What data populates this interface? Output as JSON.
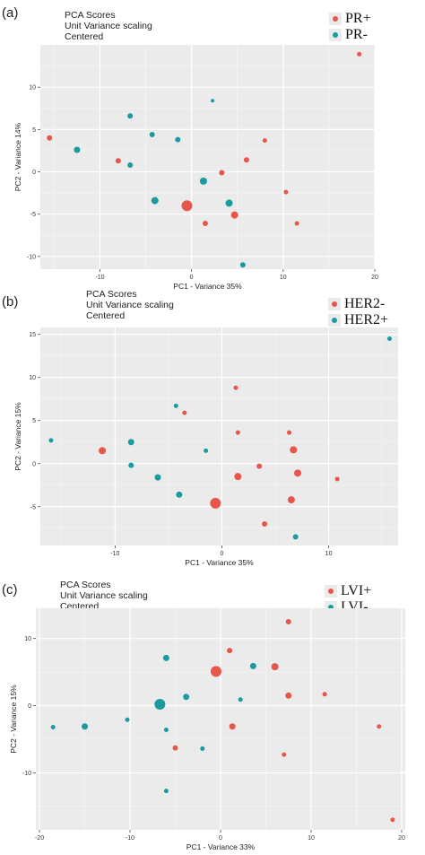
{
  "colors": {
    "red": "#e8554a",
    "teal": "#1a9ba0",
    "panel_bg": "#ebebeb",
    "grid": "#ffffff"
  },
  "panels": [
    {
      "letter": "(a)",
      "subtitle": [
        "PCA Scores",
        "Unit Variance scaling",
        "Centered"
      ],
      "legend": [
        {
          "label": "PR+",
          "color": "#e8554a"
        },
        {
          "label": "PR-",
          "color": "#1a9ba0"
        }
      ],
      "xlabel": "PC1 - Variance 35%",
      "ylabel": "PC2 - Variance 14%"
    },
    {
      "letter": "(b)",
      "subtitle": [
        "PCA Scores",
        "Unit Variance scaling",
        "Centered"
      ],
      "legend": [
        {
          "label": "HER2-",
          "color": "#e8554a"
        },
        {
          "label": "HER2+",
          "color": "#1a9ba0"
        }
      ],
      "xlabel": "PC1 - Variance 35%",
      "ylabel": "PC2 - Variance 15%"
    },
    {
      "letter": "(c)",
      "subtitle": [
        "PCA Scores",
        "Unit Variance scaling",
        "Centered"
      ],
      "legend": [
        {
          "label": "LVI+",
          "color": "#e8554a"
        },
        {
          "label": "LVI-",
          "color": "#1a9ba0"
        }
      ],
      "xlabel": "PC1 - Variance 33%",
      "ylabel": "PC2 - Variance 15%"
    }
  ],
  "chart_data": [
    {
      "type": "scatter",
      "xlabel": "PC1 - Variance 35%",
      "ylabel": "PC2 - Variance 14%",
      "xlim": [
        -16.5,
        20
      ],
      "ylim": [
        -11.5,
        15
      ],
      "xticks": [
        -10,
        0,
        10,
        20
      ],
      "yticks": [
        -10,
        -5,
        0,
        5,
        10
      ],
      "grid": true,
      "legend_position": "top-right",
      "series": [
        {
          "name": "PR+",
          "color": "#e8554a",
          "points": [
            {
              "x": -15.5,
              "y": 4.0,
              "s": 3
            },
            {
              "x": -8.0,
              "y": 1.3,
              "s": 3
            },
            {
              "x": -0.5,
              "y": -4.0,
              "s": 6
            },
            {
              "x": 1.5,
              "y": -6.1,
              "s": 3
            },
            {
              "x": 3.3,
              "y": -0.1,
              "s": 3
            },
            {
              "x": 4.7,
              "y": -5.1,
              "s": 4
            },
            {
              "x": 6.0,
              "y": 1.4,
              "s": 3
            },
            {
              "x": 8.0,
              "y": 3.7,
              "s": 2.5
            },
            {
              "x": 10.3,
              "y": -2.4,
              "s": 2.5
            },
            {
              "x": 11.5,
              "y": -6.1,
              "s": 2.5
            },
            {
              "x": 18.3,
              "y": 13.9,
              "s": 2.5
            }
          ]
        },
        {
          "name": "PR-",
          "color": "#1a9ba0",
          "points": [
            {
              "x": -12.5,
              "y": 2.6,
              "s": 3.5
            },
            {
              "x": -6.7,
              "y": 6.6,
              "s": 3
            },
            {
              "x": -6.7,
              "y": 0.8,
              "s": 3
            },
            {
              "x": -4.3,
              "y": 4.4,
              "s": 3
            },
            {
              "x": -4.0,
              "y": -3.4,
              "s": 4
            },
            {
              "x": -1.5,
              "y": 3.8,
              "s": 3
            },
            {
              "x": 1.3,
              "y": -1.1,
              "s": 4
            },
            {
              "x": 2.3,
              "y": 8.4,
              "s": 2
            },
            {
              "x": 4.1,
              "y": -3.7,
              "s": 4
            },
            {
              "x": 5.6,
              "y": -11.0,
              "s": 3
            }
          ]
        }
      ]
    },
    {
      "type": "scatter",
      "xlabel": "PC1 - Variance 35%",
      "ylabel": "PC2 - Variance 15%",
      "xlim": [
        -17,
        16.5
      ],
      "ylim": [
        -9.5,
        15.8
      ],
      "xticks": [
        -10,
        0,
        10
      ],
      "yticks": [
        -5,
        0,
        5,
        10,
        15
      ],
      "grid": true,
      "legend_position": "top-right",
      "series": [
        {
          "name": "HER2-",
          "color": "#e8554a",
          "points": [
            {
              "x": -11.2,
              "y": 1.5,
              "s": 4
            },
            {
              "x": -3.5,
              "y": 5.9,
              "s": 2.5
            },
            {
              "x": -0.6,
              "y": -4.6,
              "s": 6
            },
            {
              "x": 1.3,
              "y": 8.8,
              "s": 2.5
            },
            {
              "x": 1.5,
              "y": 3.6,
              "s": 2.5
            },
            {
              "x": 1.5,
              "y": -1.5,
              "s": 4
            },
            {
              "x": 3.5,
              "y": -0.3,
              "s": 3
            },
            {
              "x": 4.0,
              "y": -7.0,
              "s": 3
            },
            {
              "x": 6.3,
              "y": 3.6,
              "s": 2.5
            },
            {
              "x": 6.7,
              "y": 1.6,
              "s": 4
            },
            {
              "x": 6.5,
              "y": -4.2,
              "s": 4
            },
            {
              "x": 7.1,
              "y": -1.1,
              "s": 4
            },
            {
              "x": 10.8,
              "y": -1.8,
              "s": 2.5
            }
          ]
        },
        {
          "name": "HER2+",
          "color": "#1a9ba0",
          "points": [
            {
              "x": -16.0,
              "y": 2.7,
              "s": 2.5
            },
            {
              "x": -8.5,
              "y": 2.5,
              "s": 3.5
            },
            {
              "x": -8.5,
              "y": -0.2,
              "s": 3
            },
            {
              "x": -6.0,
              "y": -1.6,
              "s": 3.5
            },
            {
              "x": -4.3,
              "y": 6.7,
              "s": 2.5
            },
            {
              "x": -4.0,
              "y": -3.6,
              "s": 3.5
            },
            {
              "x": -1.5,
              "y": 1.5,
              "s": 2.5
            },
            {
              "x": 6.9,
              "y": -8.5,
              "s": 3
            },
            {
              "x": 15.7,
              "y": 14.5,
              "s": 2.5
            }
          ]
        }
      ]
    },
    {
      "type": "scatter",
      "xlabel": "PC1 - Variance 33%",
      "ylabel": "PC2 - Variance 15%",
      "xlim": [
        -20.4,
        20.4
      ],
      "ylim": [
        -18.5,
        14.5
      ],
      "xticks": [
        -20,
        -10,
        0,
        10,
        20
      ],
      "yticks": [
        -10,
        0,
        10
      ],
      "grid": true,
      "legend_position": "top-right",
      "series": [
        {
          "name": "LVI+",
          "color": "#e8554a",
          "points": [
            {
              "x": -5.0,
              "y": -6.3,
              "s": 3
            },
            {
              "x": -0.5,
              "y": 5.1,
              "s": 6
            },
            {
              "x": 1.0,
              "y": 8.2,
              "s": 3
            },
            {
              "x": 1.3,
              "y": -3.1,
              "s": 3.5
            },
            {
              "x": 6.0,
              "y": 5.8,
              "s": 4
            },
            {
              "x": 7.0,
              "y": -7.3,
              "s": 2.5
            },
            {
              "x": 7.5,
              "y": 12.5,
              "s": 3
            },
            {
              "x": 7.5,
              "y": 1.5,
              "s": 3.5
            },
            {
              "x": 11.5,
              "y": 1.7,
              "s": 2.5
            },
            {
              "x": 17.5,
              "y": -3.1,
              "s": 2.5
            },
            {
              "x": 19.0,
              "y": -17.0,
              "s": 2.5
            }
          ]
        },
        {
          "name": "LVI-",
          "color": "#1a9ba0",
          "points": [
            {
              "x": -18.5,
              "y": -3.2,
              "s": 2.5
            },
            {
              "x": -15.0,
              "y": -3.1,
              "s": 3.5
            },
            {
              "x": -10.3,
              "y": -2.1,
              "s": 2.5
            },
            {
              "x": -6.7,
              "y": 0.2,
              "s": 6
            },
            {
              "x": -6.0,
              "y": 7.1,
              "s": 3.5
            },
            {
              "x": -6.0,
              "y": -3.6,
              "s": 2.5
            },
            {
              "x": -6.0,
              "y": -12.7,
              "s": 2.5
            },
            {
              "x": -3.8,
              "y": 1.3,
              "s": 3.5
            },
            {
              "x": -2.0,
              "y": -6.4,
              "s": 2.5
            },
            {
              "x": 2.2,
              "y": 0.9,
              "s": 2.5
            },
            {
              "x": 3.6,
              "y": 5.9,
              "s": 3.5
            }
          ]
        }
      ]
    }
  ]
}
